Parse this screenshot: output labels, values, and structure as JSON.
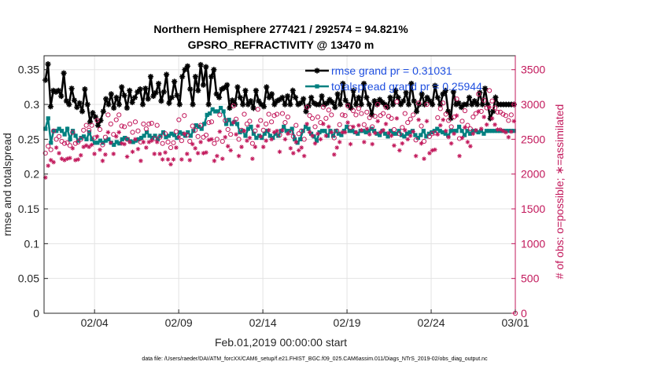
{
  "chart_data": {
    "type": "line",
    "title_line1": "Northern Hemisphere 277421 / 292574 = 94.821%",
    "title_line2": "GPSRO_REFRACTIVITY @ 13470 m",
    "xlabel": "Feb.01,2019 00:00:00 start",
    "ylabel_left": "rmse and totalspread",
    "ylabel_right": "# of obs: o=possible; ∗=assimilated",
    "footnote": "data file: /Users/raeder/DAI/ATM_forcXX/CAM6_setup/f.e21.FHIST_BGC.f09_025.CAM6assim.011/Diags_NTrS_2019-02/obs_diag_output.nc",
    "x_range_days": [
      1,
      29
    ],
    "x_ticks": [
      {
        "day": 4,
        "label": "02/04"
      },
      {
        "day": 9,
        "label": "02/09"
      },
      {
        "day": 14,
        "label": "02/14"
      },
      {
        "day": 19,
        "label": "02/19"
      },
      {
        "day": 24,
        "label": "02/24"
      },
      {
        "day": 29,
        "label": "03/01"
      }
    ],
    "y_left": {
      "lim": [
        0,
        0.37
      ],
      "ticks": [
        0,
        0.05,
        0.1,
        0.15,
        0.2,
        0.25,
        0.3,
        0.35
      ],
      "tick_labels": [
        "0",
        "0.05",
        "0.1",
        "0.15",
        "0.2",
        "0.25",
        "0.3",
        "0.35"
      ]
    },
    "y_right": {
      "lim": [
        0,
        3700
      ],
      "ticks": [
        0,
        500,
        1000,
        1500,
        2000,
        2500,
        3000,
        3500
      ],
      "tick_labels": [
        "0",
        "500",
        "1000",
        "1500",
        "2000",
        "2500",
        "3000",
        "3500"
      ]
    },
    "grid": true,
    "legend_position": "top-right",
    "series": [
      {
        "name": "rmse grand pr = 0.31031",
        "axis": "left",
        "color": "#000000",
        "marker": "asterisk",
        "values": [
          0.335,
          0.358,
          0.297,
          0.32,
          0.318,
          0.32,
          0.312,
          0.345,
          0.305,
          0.3,
          0.323,
          0.306,
          0.296,
          0.302,
          0.29,
          0.322,
          0.3,
          0.275,
          0.288,
          0.282,
          0.27,
          0.277,
          0.29,
          0.308,
          0.3,
          0.315,
          0.295,
          0.31,
          0.3,
          0.325,
          0.313,
          0.295,
          0.32,
          0.303,
          0.31,
          0.318,
          0.322,
          0.3,
          0.323,
          0.308,
          0.34,
          0.312,
          0.317,
          0.33,
          0.305,
          0.318,
          0.343,
          0.302,
          0.31,
          0.333,
          0.313,
          0.3,
          0.34,
          0.35,
          0.355,
          0.322,
          0.3,
          0.34,
          0.32,
          0.357,
          0.328,
          0.354,
          0.3,
          0.34,
          0.35,
          0.315,
          0.31,
          0.322,
          0.324,
          0.328,
          0.295,
          0.306,
          0.3,
          0.325,
          0.31,
          0.3,
          0.32,
          0.3,
          0.305,
          0.295,
          0.32,
          0.305,
          0.3,
          0.297,
          0.325,
          0.31,
          0.315,
          0.3,
          0.305,
          0.307,
          0.31,
          0.3,
          0.312,
          0.3,
          0.32,
          0.31,
          0.3,
          0.302,
          0.308,
          0.29,
          0.298,
          0.31,
          0.302,
          0.3,
          0.3,
          0.312,
          0.3,
          0.302,
          0.307,
          0.303,
          0.296,
          0.315,
          0.3,
          0.33,
          0.306,
          0.3,
          0.295,
          0.32,
          0.3,
          0.31,
          0.3,
          0.33,
          0.31,
          0.3,
          0.285,
          0.305,
          0.3,
          0.307,
          0.303,
          0.3,
          0.296,
          0.31,
          0.3,
          0.32,
          0.31,
          0.3,
          0.305,
          0.317,
          0.3,
          0.33,
          0.305,
          0.29,
          0.3,
          0.315,
          0.3,
          0.31,
          0.305,
          0.3,
          0.327,
          0.31,
          0.3,
          0.315,
          0.32,
          0.29,
          0.28,
          0.318,
          0.3,
          0.302,
          0.296,
          0.3,
          0.3,
          0.31,
          0.3,
          0.305,
          0.3,
          0.317,
          0.3,
          0.323,
          0.3,
          0.28,
          0.29,
          0.31,
          0.3,
          0.3,
          0.3,
          0.3,
          0.3,
          0.3,
          0.3
        ]
      },
      {
        "name": "totalspread grand pr = 0.25944",
        "axis": "left",
        "color": "#008080",
        "marker": "square",
        "values": [
          0.265,
          0.28,
          0.245,
          0.262,
          0.262,
          0.265,
          0.262,
          0.257,
          0.265,
          0.25,
          0.262,
          0.255,
          0.248,
          0.252,
          0.254,
          0.25,
          0.26,
          0.25,
          0.245,
          0.245,
          0.248,
          0.245,
          0.248,
          0.25,
          0.245,
          0.242,
          0.246,
          0.244,
          0.25,
          0.252,
          0.25,
          0.247,
          0.246,
          0.248,
          0.25,
          0.252,
          0.255,
          0.26,
          0.255,
          0.252,
          0.255,
          0.25,
          0.255,
          0.26,
          0.253,
          0.255,
          0.258,
          0.256,
          0.252,
          0.26,
          0.258,
          0.255,
          0.26,
          0.255,
          0.262,
          0.27,
          0.268,
          0.265,
          0.272,
          0.285,
          0.287,
          0.293,
          0.29,
          0.29,
          0.295,
          0.29,
          0.272,
          0.278,
          0.272,
          0.275,
          0.272,
          0.26,
          0.262,
          0.255,
          0.265,
          0.268,
          0.258,
          0.252,
          0.255,
          0.252,
          0.258,
          0.262,
          0.255,
          0.252,
          0.258,
          0.255,
          0.262,
          0.268,
          0.262,
          0.262,
          0.265,
          0.25,
          0.245,
          0.25,
          0.262,
          0.268,
          0.265,
          0.258,
          0.254,
          0.248,
          0.26,
          0.262,
          0.262,
          0.255,
          0.262,
          0.255,
          0.262,
          0.258,
          0.256,
          0.262,
          0.268,
          0.262,
          0.262,
          0.26,
          0.258,
          0.262,
          0.262,
          0.26,
          0.262,
          0.265,
          0.262,
          0.258,
          0.256,
          0.262,
          0.258,
          0.254,
          0.262,
          0.258,
          0.258,
          0.262,
          0.256,
          0.254,
          0.258,
          0.26,
          0.262,
          0.256,
          0.252,
          0.256,
          0.262,
          0.254,
          0.258,
          0.26,
          0.262,
          0.265,
          0.262,
          0.26,
          0.258,
          0.255,
          0.262,
          0.262,
          0.262,
          0.268,
          0.262,
          0.256,
          0.262,
          0.258,
          0.262,
          0.262,
          0.26,
          0.262,
          0.258,
          0.262,
          0.262,
          0.262,
          0.262,
          0.262,
          0.262,
          0.262,
          0.262,
          0.262,
          0.262,
          0.262
        ]
      },
      {
        "name": "possible",
        "axis": "right",
        "color": "#c2185b",
        "marker": "circle",
        "values": [
          2300,
          2400,
          2350,
          2620,
          2500,
          2540,
          2470,
          2440,
          2450,
          2410,
          2600,
          2440,
          2460,
          2500,
          2630,
          2700,
          2630,
          2700,
          2520,
          2770,
          2640,
          2420,
          2530,
          2850,
          2720,
          2570,
          2780,
          2850,
          2690,
          2680,
          2500,
          2720,
          2600,
          2750,
          2620,
          2460,
          2720,
          2650,
          2720,
          2730,
          2510,
          2700,
          2530,
          2440,
          2580,
          2460,
          2380,
          2450,
          2610,
          2780,
          2480,
          2840,
          2560,
          2470,
          2690,
          2630,
          2540,
          2700,
          2530,
          2560,
          2740,
          2750,
          2440,
          2500,
          2850,
          2470,
          2770,
          2640,
          2570,
          2980,
          2790,
          2500,
          2630,
          2860,
          2720,
          2760,
          2440,
          2620,
          2930,
          2770,
          2630,
          2720,
          2860,
          2750,
          2840,
          2860,
          2560,
          2870,
          2740,
          2820,
          2600,
          2540,
          2700,
          2580,
          2620,
          2500,
          2960,
          2840,
          2800,
          2680,
          2820,
          2740,
          2960,
          2800,
          2920,
          2850,
          2520,
          2620,
          2710,
          2850,
          2840,
          2980,
          2670,
          2910,
          2850,
          2940,
          2870,
          2710,
          2890,
          2810,
          2680,
          2830,
          3000,
          2840,
          2870,
          2960,
          2830,
          2800,
          2640,
          3040,
          2580,
          2670,
          2870,
          2740,
          2790,
          2850,
          2490,
          3020,
          2690,
          2470,
          3000,
          2540,
          2580,
          2590,
          2810,
          2940,
          3020,
          2860,
          2770,
          2680,
          2820,
          3080,
          2510,
          2760,
          2910,
          2700,
          2650,
          2820,
          2870,
          3150,
          2900,
          3060,
          2950,
          3200,
          3050,
          2950,
          2890,
          2890,
          2860,
          2840,
          2770,
          2850,
          3000
        ]
      },
      {
        "name": "assimilated",
        "axis": "right",
        "color": "#c2185b",
        "marker": "asterisk",
        "values": [
          1950,
          2120,
          2200,
          2170,
          2380,
          2300,
          2220,
          2200,
          2220,
          2230,
          2370,
          2200,
          2210,
          2270,
          2390,
          2410,
          2390,
          2420,
          2290,
          2540,
          2350,
          2190,
          2280,
          2600,
          2450,
          2290,
          2540,
          2600,
          2440,
          2430,
          2250,
          2460,
          2320,
          2500,
          2360,
          2190,
          2460,
          2380,
          2460,
          2480,
          2290,
          2460,
          2290,
          2210,
          2310,
          2210,
          2140,
          2210,
          2380,
          2530,
          2210,
          2580,
          2290,
          2200,
          2430,
          2370,
          2300,
          2460,
          2300,
          2310,
          2490,
          2500,
          2190,
          2260,
          2610,
          2220,
          2530,
          2400,
          2340,
          2740,
          2570,
          2260,
          2390,
          2620,
          2480,
          2520,
          2220,
          2390,
          2690,
          2540,
          2390,
          2480,
          2630,
          2500,
          2600,
          2620,
          2320,
          2630,
          2500,
          2580,
          2370,
          2300,
          2460,
          2340,
          2380,
          2260,
          2720,
          2600,
          2550,
          2440,
          2580,
          2500,
          2720,
          2550,
          2680,
          2600,
          2280,
          2380,
          2460,
          2600,
          2600,
          2740,
          2430,
          2680,
          2600,
          2700,
          2630,
          2460,
          2650,
          2570,
          2430,
          2590,
          2760,
          2600,
          2630,
          2720,
          2590,
          2550,
          2410,
          2800,
          2340,
          2440,
          2630,
          2500,
          2550,
          2610,
          2260,
          2780,
          2440,
          2220,
          2760,
          2300,
          2340,
          2350,
          2570,
          2700,
          2780,
          2620,
          2530,
          2440,
          2580,
          2840,
          2260,
          2520,
          2670,
          2460,
          2400,
          2580,
          2630,
          2900,
          2650,
          2820,
          2710,
          2960,
          2800,
          2710,
          2640,
          2640,
          2620,
          2600,
          2530,
          2610,
          2760
        ]
      }
    ]
  }
}
